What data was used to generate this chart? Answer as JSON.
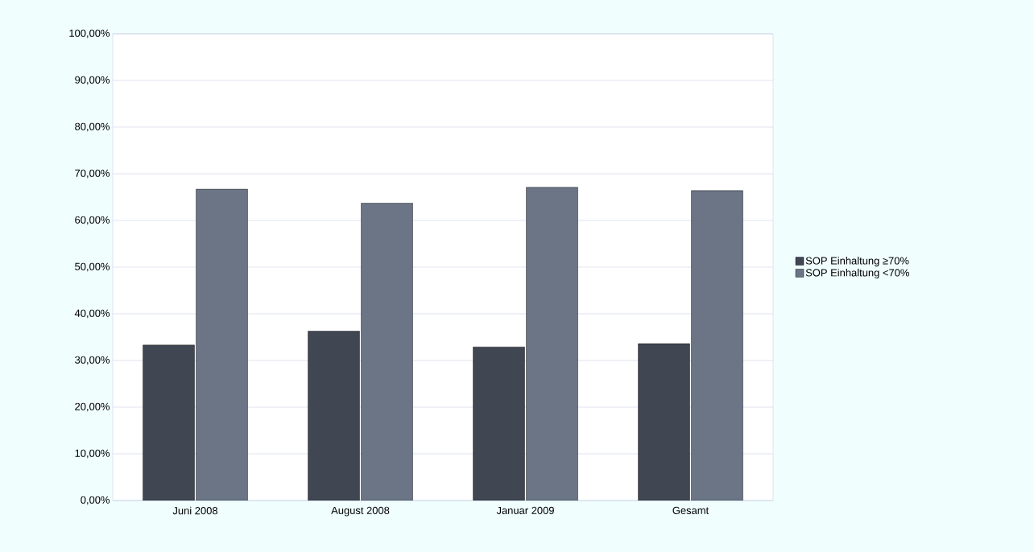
{
  "chart_data": {
    "type": "bar",
    "categories": [
      "Juni 2008",
      "August 2008",
      "Januar 2009",
      "Gesamt"
    ],
    "series": [
      {
        "name": "SOP Einhaltung  ≥70%",
        "color": "#404652",
        "values": [
          33.3,
          36.3,
          32.9,
          33.6
        ]
      },
      {
        "name": "SOP Einhaltung  <70%",
        "color": "#6b7585",
        "values": [
          66.7,
          63.7,
          67.1,
          66.4
        ]
      }
    ],
    "ylim": [
      0,
      100
    ],
    "yticks": [
      {
        "value": 0,
        "label": "0,00%"
      },
      {
        "value": 10,
        "label": "10,00%"
      },
      {
        "value": 20,
        "label": "20,00%"
      },
      {
        "value": 30,
        "label": "30,00%"
      },
      {
        "value": 40,
        "label": "40,00%"
      },
      {
        "value": 50,
        "label": "50,00%"
      },
      {
        "value": 60,
        "label": "60,00%"
      },
      {
        "value": 70,
        "label": "70,00%"
      },
      {
        "value": 80,
        "label": "80,00%"
      },
      {
        "value": 90,
        "label": "90,00%"
      },
      {
        "value": 100,
        "label": "100,00%"
      }
    ],
    "grid": "y",
    "legend": "right"
  }
}
